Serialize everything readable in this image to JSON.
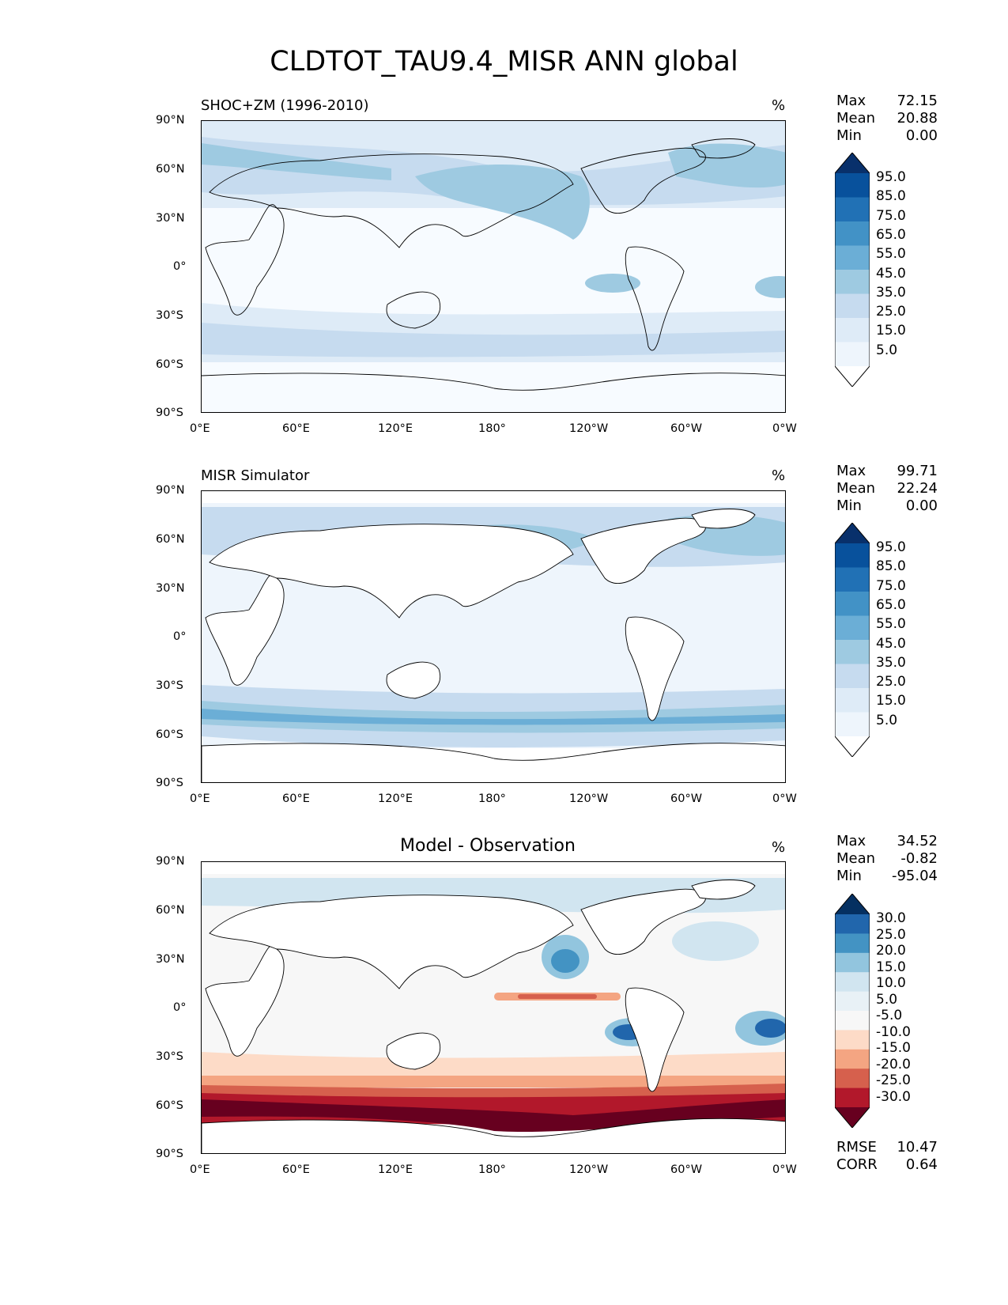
{
  "figure_title": "CLDTOT_TAU9.4_MISR ANN global",
  "x_ticks": [
    "0°E",
    "60°E",
    "120°E",
    "180°",
    "120°W",
    "60°W",
    "0°W"
  ],
  "y_ticks": [
    "90°N",
    "60°N",
    "30°N",
    "0°",
    "30°S",
    "60°S",
    "90°S"
  ],
  "panels": [
    {
      "label_left": "SHOC+ZM (1996-2010)",
      "unit": "%",
      "stats": {
        "max_label": "Max",
        "max": "72.15",
        "mean_label": "Mean",
        "mean": "20.88",
        "min_label": "Min",
        "min": "0.00"
      },
      "colorbar_levels": [
        "95.0",
        "85.0",
        "75.0",
        "65.0",
        "55.0",
        "45.0",
        "35.0",
        "25.0",
        "15.0",
        "5.0"
      ],
      "colors": [
        "#08306b",
        "#08519c",
        "#2171b5",
        "#4292c6",
        "#6baed6",
        "#9ecae1",
        "#c6dbef",
        "#deebf7",
        "#eef5fc",
        "#ffffff"
      ]
    },
    {
      "label_left": "MISR Simulator",
      "unit": "%",
      "stats": {
        "max_label": "Max",
        "max": "99.71",
        "mean_label": "Mean",
        "mean": "22.24",
        "min_label": "Min",
        "min": "0.00"
      },
      "colorbar_levels": [
        "95.0",
        "85.0",
        "75.0",
        "65.0",
        "55.0",
        "45.0",
        "35.0",
        "25.0",
        "15.0",
        "5.0"
      ],
      "colors": [
        "#08306b",
        "#08519c",
        "#2171b5",
        "#4292c6",
        "#6baed6",
        "#9ecae1",
        "#c6dbef",
        "#deebf7",
        "#eef5fc",
        "#ffffff"
      ]
    },
    {
      "label_center": "Model - Observation",
      "unit": "%",
      "stats": {
        "max_label": "Max",
        "max": "34.52",
        "mean_label": "Mean",
        "mean": "-0.82",
        "min_label": "Min",
        "min": "-95.04"
      },
      "colorbar_levels": [
        "30.0",
        "25.0",
        "20.0",
        "15.0",
        "10.0",
        "5.0",
        "-5.0",
        "-10.0",
        "-15.0",
        "-20.0",
        "-25.0",
        "-30.0"
      ],
      "colors": [
        "#053061",
        "#2166ac",
        "#4393c3",
        "#92c5de",
        "#d1e5f0",
        "#e8f1f6",
        "#f7f7f7",
        "#fddbc7",
        "#f4a582",
        "#d6604d",
        "#b2182b",
        "#67001f"
      ],
      "metrics": {
        "rmse_label": "RMSE",
        "rmse": "10.47",
        "corr_label": "CORR",
        "corr": "0.64"
      }
    }
  ]
}
